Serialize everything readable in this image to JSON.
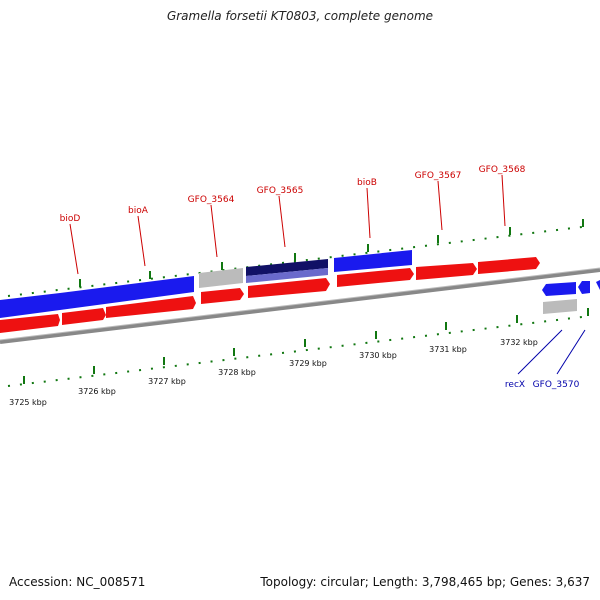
{
  "title": "Gramella forsetii KT0803, complete genome",
  "footer": {
    "accession": "Accession: NC_008571",
    "summary": "Topology: circular; Length: 3,798,465 bp; Genes: 3,637"
  },
  "kbp_ticks": [
    {
      "label": "3725 kbp"
    },
    {
      "label": "3726 kbp"
    },
    {
      "label": "3727 kbp"
    },
    {
      "label": "3728 kbp"
    },
    {
      "label": "3729 kbp"
    },
    {
      "label": "3730 kbp"
    },
    {
      "label": "3731 kbp"
    },
    {
      "label": "3732 kbp"
    }
  ],
  "gene_labels_forward": [
    "bioD",
    "bioA",
    "GFO_3564",
    "GFO_3565",
    "bioB",
    "GFO_3567",
    "GFO_3568"
  ],
  "gene_labels_reverse": [
    "recX",
    "GFO_3570"
  ],
  "colors": {
    "forward_label": "#cc0000",
    "reverse_label": "#0000aa",
    "cds": "#ee1111",
    "gene_blue": "#1a1aee",
    "gene_gray": "#bbbbbb",
    "gene_dark": "#111166",
    "tick_green": "#117711",
    "backbone": "#888888"
  }
}
